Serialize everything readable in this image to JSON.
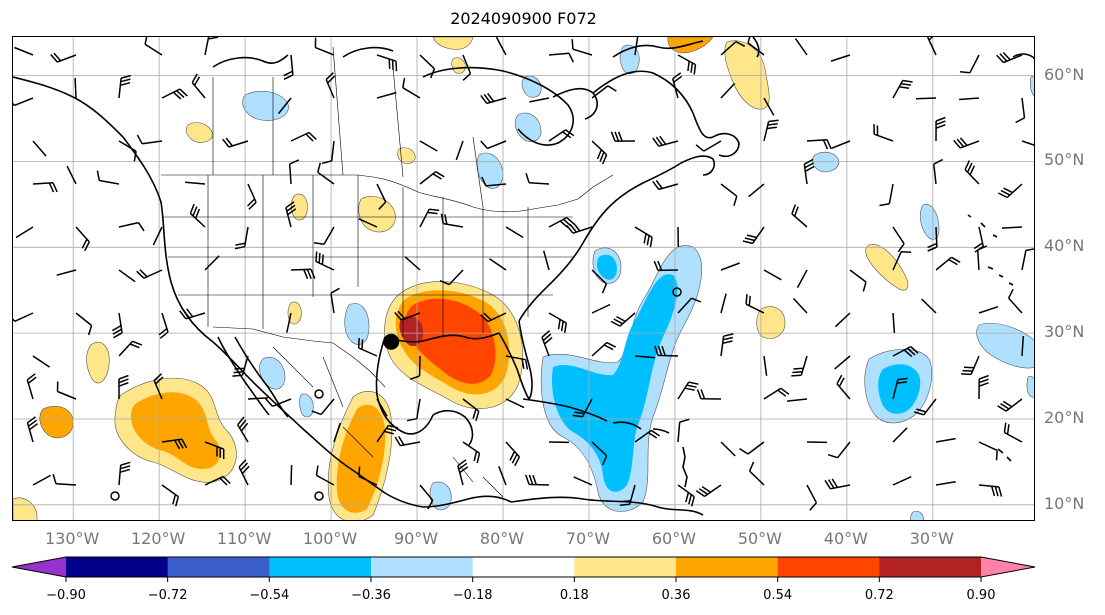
{
  "title": "2024090900 F072",
  "lat_labels": [
    {
      "lat": 60,
      "text": "60°N"
    },
    {
      "lat": 50,
      "text": "50°N"
    },
    {
      "lat": 40,
      "text": "40°N"
    },
    {
      "lat": 30,
      "text": "30°N"
    },
    {
      "lat": 20,
      "text": "20°N"
    },
    {
      "lat": 10,
      "text": "10°N"
    }
  ],
  "lon_labels": [
    {
      "lon": -130,
      "text": "130°W"
    },
    {
      "lon": -120,
      "text": "120°W"
    },
    {
      "lon": -110,
      "text": "110°W"
    },
    {
      "lon": -100,
      "text": "100°W"
    },
    {
      "lon": -90,
      "text": "90°W"
    },
    {
      "lon": -80,
      "text": "80°W"
    },
    {
      "lon": -70,
      "text": "70°W"
    },
    {
      "lon": -60,
      "text": "60°W"
    },
    {
      "lon": -50,
      "text": "50°W"
    },
    {
      "lon": -40,
      "text": "40°W"
    },
    {
      "lon": -30,
      "text": "30°W"
    }
  ],
  "extent": {
    "lon_min": -137,
    "lon_max": -18,
    "lat_min": 8,
    "lat_max": 64.5
  },
  "colorbar": {
    "ticks": [
      "−0.90",
      "−0.72",
      "−0.54",
      "−0.36",
      "−0.18",
      "0.18",
      "0.36",
      "0.54",
      "0.72",
      "0.90"
    ],
    "levels": [
      -0.9,
      -0.72,
      -0.54,
      -0.36,
      -0.18,
      0.18,
      0.36,
      0.54,
      0.72,
      0.9
    ],
    "under_color": "#9932cc",
    "over_color": "#ff82ab",
    "colors": [
      "#00008b",
      "#3a5fcd",
      "#00bfff",
      "#b0e0ff",
      "#ffffff",
      "#ffe68a",
      "#ffa500",
      "#ff4500",
      "#b22222"
    ]
  },
  "marker": {
    "lon": -93,
    "lat": 29,
    "color": "#000000"
  },
  "colors": {
    "grid": "#a9a9a9",
    "coast": "#000000",
    "label": "#777777"
  }
}
